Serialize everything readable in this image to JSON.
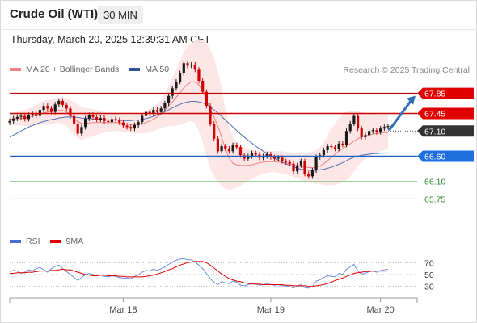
{
  "header": {
    "instrument": "Crude Oil (WTI)",
    "timeframe": "30 MIN",
    "timestamp": "Thursday, March 20, 2025 12:39:31 AM CET"
  },
  "price_legend": {
    "items": [
      {
        "label": "MA 20 + Bollinger Bands",
        "color": "#f08080"
      },
      {
        "label": "MA 50",
        "color": "#2f5597"
      }
    ]
  },
  "credit": "Research © 2025 Trading Central",
  "rsi_legend": {
    "items": [
      {
        "label": "RSI",
        "color": "#4b6cd3"
      },
      {
        "label": "9MA",
        "color": "#e00000"
      }
    ]
  },
  "colors": {
    "up": "#1a1a1a",
    "down": "#d10000",
    "resistance": "#cc0000",
    "support_blue": "#1f5fbf",
    "support_green": "#8dc98d",
    "arrow": "#2f6db5",
    "bollinger_fill": "#fde3e3",
    "ma20": "#f08080",
    "ma50": "#4e6fb3"
  },
  "chart_data": {
    "type": "candlestick",
    "x_ticks": [
      "Mar 18",
      "Mar 19",
      "Mar 20"
    ],
    "y_range": [
      65.5,
      68.1
    ],
    "levels": [
      {
        "value": 67.85,
        "label": "67.85",
        "kind": "resistance"
      },
      {
        "value": 67.45,
        "label": "67.45",
        "kind": "resistance"
      },
      {
        "value": 67.1,
        "label": "67.10",
        "kind": "current"
      },
      {
        "value": 66.6,
        "label": "66.60",
        "kind": "support"
      },
      {
        "value": 66.1,
        "label": "66.10",
        "kind": "support_weak"
      },
      {
        "value": 65.75,
        "label": "65.75",
        "kind": "support_weak"
      }
    ],
    "forecast_arrow": {
      "from": 67.1,
      "to": 67.85
    },
    "close": [
      67.3,
      67.35,
      67.38,
      67.4,
      67.34,
      67.42,
      67.45,
      67.4,
      67.52,
      67.6,
      67.55,
      67.48,
      67.63,
      67.7,
      67.62,
      67.55,
      67.4,
      67.25,
      67.05,
      67.18,
      67.35,
      67.42,
      67.38,
      67.33,
      67.36,
      67.3,
      67.28,
      67.34,
      67.32,
      67.27,
      67.21,
      67.18,
      67.15,
      67.22,
      67.28,
      67.4,
      67.48,
      67.45,
      67.52,
      67.48,
      67.55,
      67.65,
      67.8,
      67.95,
      68.08,
      68.25,
      68.45,
      68.4,
      68.42,
      68.32,
      68.1,
      67.88,
      67.6,
      67.25,
      66.95,
      66.7,
      66.8,
      66.75,
      66.7,
      66.82,
      66.78,
      66.62,
      66.55,
      66.6,
      66.66,
      66.63,
      66.57,
      66.6,
      66.64,
      66.58,
      66.55,
      66.57,
      66.5,
      66.48,
      66.45,
      66.3,
      66.42,
      66.5,
      66.25,
      66.2,
      66.32,
      66.58,
      66.62,
      66.72,
      66.8,
      66.78,
      66.75,
      66.85,
      66.83,
      67.1,
      67.25,
      67.4,
      67.15,
      66.98,
      67.02,
      67.1,
      67.12,
      67.08,
      67.15,
      67.18,
      67.2
    ],
    "bb_upper": [
      67.45,
      67.46,
      67.48,
      67.5,
      67.52,
      67.55,
      67.58,
      67.62,
      67.66,
      67.7,
      67.72,
      67.73,
      67.75,
      67.77,
      67.78,
      67.76,
      67.72,
      67.68,
      67.63,
      67.58,
      67.56,
      67.55,
      67.54,
      67.52,
      67.5,
      67.48,
      67.46,
      67.45,
      67.44,
      67.42,
      67.41,
      67.4,
      67.4,
      67.41,
      67.42,
      67.44,
      67.48,
      67.53,
      67.58,
      67.64,
      67.72,
      67.85,
      68.0,
      68.15,
      68.32,
      68.5,
      68.68,
      68.78,
      68.85,
      68.9,
      68.93,
      68.92,
      68.85,
      68.72,
      68.55,
      68.3,
      67.95,
      67.55,
      67.2,
      66.98,
      66.88,
      66.82,
      66.78,
      66.75,
      66.73,
      66.72,
      66.72,
      66.71,
      66.71,
      66.7,
      66.7,
      66.7,
      66.7,
      66.69,
      66.68,
      66.67,
      66.66,
      66.66,
      66.67,
      66.68,
      66.69,
      66.72,
      66.78,
      66.88,
      67.0,
      67.15,
      67.25,
      67.35,
      67.42,
      67.48,
      67.51,
      67.51,
      67.5,
      67.48,
      67.46,
      67.45,
      67.44,
      67.43,
      67.42,
      67.42,
      67.41
    ],
    "bb_lower": [
      67.22,
      67.22,
      67.21,
      67.2,
      67.2,
      67.2,
      67.21,
      67.21,
      67.22,
      67.23,
      67.24,
      67.25,
      67.26,
      67.26,
      67.25,
      67.2,
      67.12,
      67.02,
      66.95,
      66.92,
      66.95,
      66.98,
      67.0,
      67.02,
      67.05,
      67.07,
      67.08,
      67.1,
      67.1,
      67.1,
      67.09,
      67.08,
      67.07,
      67.06,
      67.05,
      67.05,
      67.06,
      67.08,
      67.1,
      67.13,
      67.16,
      67.18,
      67.2,
      67.2,
      67.21,
      67.22,
      67.25,
      67.28,
      67.3,
      67.25,
      67.1,
      66.88,
      66.6,
      66.35,
      66.2,
      66.1,
      66.0,
      65.95,
      65.93,
      65.95,
      65.98,
      66.02,
      66.06,
      66.1,
      66.14,
      66.18,
      66.22,
      66.25,
      66.27,
      66.28,
      66.28,
      66.27,
      66.26,
      66.24,
      66.22,
      66.19,
      66.16,
      66.13,
      66.1,
      66.08,
      66.06,
      66.05,
      66.04,
      66.03,
      66.02,
      66.02,
      66.03,
      66.05,
      66.08,
      66.12,
      66.2,
      66.3,
      66.4,
      66.48,
      66.55,
      66.6,
      66.64,
      66.67,
      66.7,
      66.72,
      66.73
    ],
    "ma20": [
      67.34,
      67.34,
      67.35,
      67.35,
      67.36,
      67.37,
      67.39,
      67.41,
      67.44,
      67.46,
      67.48,
      67.49,
      67.5,
      67.51,
      67.51,
      67.48,
      67.42,
      67.35,
      67.29,
      67.25,
      67.25,
      67.26,
      67.27,
      67.27,
      67.27,
      67.27,
      67.27,
      67.27,
      67.27,
      67.26,
      67.25,
      67.24,
      67.23,
      67.23,
      67.23,
      67.24,
      67.27,
      67.3,
      67.34,
      67.38,
      67.44,
      67.51,
      67.6,
      67.68,
      67.77,
      67.86,
      67.96,
      68.03,
      68.08,
      68.08,
      68.02,
      67.9,
      67.73,
      67.53,
      67.38,
      67.2,
      66.98,
      66.75,
      66.56,
      66.46,
      66.43,
      66.42,
      66.42,
      66.42,
      66.43,
      66.45,
      66.47,
      66.48,
      66.49,
      66.49,
      66.49,
      66.48,
      66.48,
      66.47,
      66.45,
      66.43,
      66.41,
      66.39,
      66.38,
      66.38,
      66.37,
      66.38,
      66.41,
      66.45,
      66.51,
      66.58,
      66.64,
      66.7,
      66.75,
      66.8,
      66.85,
      66.9,
      66.95,
      66.98,
      67.0,
      67.02,
      67.04,
      67.05,
      67.06,
      67.07,
      67.07
    ],
    "ma50": [
      66.98,
      67.02,
      67.06,
      67.1,
      67.14,
      67.18,
      67.21,
      67.24,
      67.27,
      67.29,
      67.31,
      67.33,
      67.34,
      67.36,
      67.37,
      67.38,
      67.38,
      67.38,
      67.37,
      67.36,
      67.35,
      67.35,
      67.34,
      67.34,
      67.33,
      67.33,
      67.32,
      67.32,
      67.32,
      67.32,
      67.31,
      67.31,
      67.31,
      67.32,
      67.32,
      67.33,
      67.35,
      67.37,
      67.39,
      67.42,
      67.45,
      67.48,
      67.52,
      67.56,
      67.6,
      67.63,
      67.66,
      67.68,
      67.69,
      67.69,
      67.68,
      67.66,
      67.63,
      67.58,
      67.52,
      67.46,
      67.39,
      67.32,
      67.25,
      67.18,
      67.11,
      67.04,
      66.98,
      66.92,
      66.86,
      66.8,
      66.75,
      66.7,
      66.65,
      66.6,
      66.56,
      66.52,
      66.48,
      66.45,
      66.42,
      66.39,
      66.36,
      66.34,
      66.33,
      66.32,
      66.32,
      66.32,
      66.33,
      66.34,
      66.36,
      66.38,
      66.41,
      66.44,
      66.47,
      66.51,
      66.55,
      66.58,
      66.6,
      66.62,
      66.63,
      66.64,
      66.65,
      66.65,
      66.66,
      66.66,
      66.67
    ],
    "rsi": {
      "y_ticks": [
        70,
        50,
        30
      ],
      "range": [
        20,
        80
      ],
      "rsi": [
        55,
        57,
        56,
        52,
        54,
        58,
        56,
        60,
        62,
        58,
        54,
        60,
        64,
        66,
        60,
        55,
        50,
        45,
        40,
        45,
        50,
        52,
        50,
        48,
        49,
        47,
        46,
        48,
        47,
        45,
        44,
        44,
        43,
        47,
        49,
        54,
        57,
        56,
        59,
        57,
        60,
        63,
        67,
        71,
        74,
        76,
        77,
        75,
        75,
        71,
        66,
        60,
        52,
        43,
        37,
        33,
        38,
        36,
        35,
        39,
        37,
        32,
        31,
        33,
        35,
        34,
        32,
        33,
        35,
        33,
        32,
        33,
        31,
        31,
        30,
        27,
        31,
        33,
        28,
        27,
        30,
        39,
        41,
        45,
        48,
        47,
        46,
        52,
        50,
        59,
        63,
        67,
        56,
        51,
        52,
        55,
        56,
        54,
        57,
        58,
        59
      ],
      "ma9": [
        52,
        52,
        53,
        53,
        53,
        54,
        54,
        55,
        56,
        56,
        56,
        57,
        57,
        58,
        59,
        58,
        58,
        56,
        54,
        52,
        50,
        49,
        48,
        48,
        49,
        49,
        48,
        48,
        48,
        47,
        47,
        46,
        46,
        46,
        46,
        46,
        47,
        48,
        49,
        51,
        53,
        55,
        58,
        60,
        63,
        66,
        68,
        70,
        71,
        72,
        72,
        72,
        70,
        66,
        61,
        56,
        51,
        47,
        43,
        41,
        39,
        38,
        36,
        35,
        34,
        34,
        34,
        33,
        33,
        33,
        33,
        33,
        33,
        32,
        32,
        31,
        31,
        31,
        31,
        30,
        30,
        31,
        32,
        33,
        35,
        37,
        40,
        42,
        44,
        47,
        49,
        52,
        53,
        54,
        55,
        55,
        56,
        56,
        56,
        56,
        56
      ]
    }
  }
}
